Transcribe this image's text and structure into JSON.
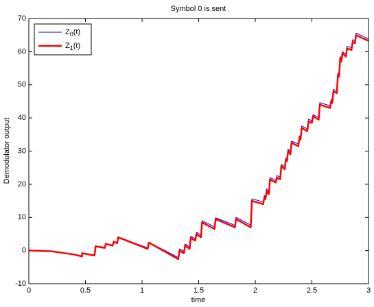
{
  "chart_data": {
    "type": "line",
    "title": "Symbol 0 is sent",
    "x_label": "time",
    "y_label": "Demodulator output",
    "x": [
      0,
      0.2,
      0.4,
      0.47,
      0.47,
      0.58,
      0.59,
      0.67,
      0.68,
      0.74,
      0.75,
      0.78,
      0.79,
      1.05,
      1.06,
      1.32,
      1.33,
      1.37,
      1.38,
      1.42,
      1.43,
      1.47,
      1.48,
      1.52,
      1.53,
      1.64,
      1.65,
      1.82,
      1.83,
      1.96,
      1.97,
      2.07,
      2.08,
      2.09,
      2.1,
      2.12,
      2.13,
      2.18,
      2.19,
      2.22,
      2.23,
      2.26,
      2.27,
      2.28,
      2.29,
      2.31,
      2.32,
      2.38,
      2.39,
      2.4,
      2.41,
      2.46,
      2.47,
      2.5,
      2.51,
      2.56,
      2.57,
      2.66,
      2.67,
      2.68,
      2.69,
      2.72,
      2.73,
      2.74,
      2.75,
      2.76,
      2.77,
      2.8,
      2.81,
      2.85,
      2.86,
      2.88,
      2.89,
      2.95,
      3
    ],
    "series": [
      {
        "name": "Z0(t)",
        "color": "#0000ff",
        "width": 1,
        "values": [
          0,
          -0.2,
          -1.1,
          -1.6,
          -0.7,
          -1.3,
          1.4,
          1,
          2.1,
          1.7,
          2.8,
          2.4,
          4.1,
          0.8,
          2.5,
          -2.1,
          0.5,
          -0.2,
          2,
          1.1,
          4.3,
          3.6,
          5.5,
          4.7,
          9,
          7.2,
          9.9,
          7.6,
          10,
          7.7,
          15.6,
          14.7,
          16.6,
          16.1,
          18.6,
          17.7,
          22,
          21.2,
          22.6,
          22.2,
          26,
          25.2,
          28,
          27.6,
          30.6,
          29.7,
          33,
          32.2,
          34.6,
          34.2,
          37.6,
          36.7,
          39.6,
          39.2,
          41,
          40.2,
          44.6,
          43.7,
          45.6,
          45.2,
          48.6,
          48.2,
          53.6,
          53.2,
          58.6,
          57.7,
          60,
          59.2,
          61.6,
          61.2,
          63.6,
          63.2,
          65.6,
          64.7,
          63.8
        ]
      },
      {
        "name": "Z1(t)",
        "color": "#ff0000",
        "width": 2.5,
        "values": [
          0,
          -0.2,
          -1.2,
          -1.8,
          -0.8,
          -1.5,
          1.3,
          0.8,
          2,
          1.5,
          2.7,
          2.2,
          4,
          0.5,
          2.4,
          -2.6,
          0,
          -0.8,
          1.5,
          0.5,
          3.8,
          3,
          5,
          4,
          8.5,
          6.5,
          9.5,
          7,
          9.5,
          7,
          15,
          14,
          16,
          15.5,
          18,
          17,
          21.5,
          20.5,
          22,
          21.5,
          25.5,
          24.5,
          27.5,
          27,
          30,
          29,
          32.5,
          31.5,
          34,
          33.5,
          37,
          36,
          39,
          38.5,
          40.5,
          39.5,
          44,
          43,
          45,
          44.5,
          48,
          47.5,
          53,
          52.5,
          58,
          57,
          59.5,
          58.5,
          61,
          60.5,
          63,
          62.5,
          65,
          64,
          63.3
        ]
      }
    ],
    "xlim": [
      0,
      3
    ],
    "ylim": [
      -10,
      70
    ],
    "xticks": [
      0,
      0.5,
      1,
      1.5,
      2,
      2.5,
      3
    ],
    "yticks": [
      -10,
      0,
      10,
      20,
      30,
      40,
      50,
      60,
      70
    ],
    "legend": "upper left"
  }
}
